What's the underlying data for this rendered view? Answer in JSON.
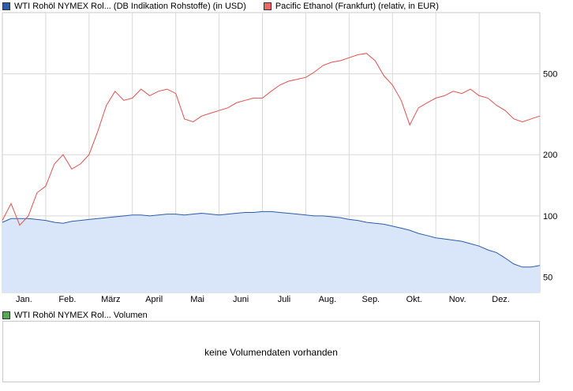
{
  "legend": {
    "series1_label": "WTI Rohöl NYMEX Rol... (DB Indikation Rohstoffe) (in USD)",
    "series2_label": "Pacific Ethanol (Frankfurt) (relativ, in EUR)",
    "volume_label": "WTI Rohöl NYMEX Rol... Volumen"
  },
  "volume_panel": {
    "message": "keine Volumendaten vorhanden"
  },
  "colors": {
    "series1": "#2a5caa",
    "series1_fill": "#d9e6fa",
    "series2": "#e05050",
    "volume": "#55aa55",
    "grid": "#d8d8d8"
  },
  "chart_data": {
    "type": "line",
    "y_scale": "log",
    "ylim": [
      42,
      1000
    ],
    "y_ticks": [
      50,
      100,
      200,
      500
    ],
    "x_tick_labels": [
      "Jan.",
      "Feb.",
      "März",
      "April",
      "Mai",
      "Juni",
      "Juli",
      "Aug.",
      "Sep.",
      "Okt.",
      "Nov.",
      "Dez."
    ],
    "grid": true,
    "legend_position": "top",
    "x": [
      0,
      0.2,
      0.4,
      0.6,
      0.8,
      1.0,
      1.2,
      1.4,
      1.6,
      1.8,
      2.0,
      2.2,
      2.4,
      2.6,
      2.8,
      3.0,
      3.2,
      3.4,
      3.6,
      3.8,
      4.0,
      4.2,
      4.4,
      4.6,
      4.8,
      5.0,
      5.2,
      5.4,
      5.6,
      5.8,
      6.0,
      6.2,
      6.4,
      6.6,
      6.8,
      7.0,
      7.2,
      7.4,
      7.6,
      7.8,
      8.0,
      8.2,
      8.4,
      8.6,
      8.8,
      9.0,
      9.2,
      9.4,
      9.6,
      9.8,
      10.0,
      10.2,
      10.4,
      10.6,
      10.8,
      11.0,
      11.2,
      11.4,
      11.6,
      11.8,
      12.0,
      12.2,
      12.4
    ],
    "series": [
      {
        "name": "WTI Rohöl NYMEX Rol... (DB Indikation Rohstoffe) (in USD)",
        "values": [
          93,
          97,
          97,
          97,
          96,
          95,
          93,
          92,
          94,
          95,
          96,
          97,
          98,
          99,
          100,
          101,
          101,
          100,
          101,
          102,
          102,
          101,
          102,
          103,
          102,
          101,
          102,
          103,
          104,
          104,
          105,
          105,
          104,
          103,
          102,
          101,
          100,
          100,
          99,
          98,
          96,
          95,
          93,
          92,
          91,
          89,
          87,
          85,
          82,
          80,
          78,
          77,
          76,
          75,
          73,
          71,
          68,
          66,
          62,
          58,
          56,
          56,
          57
        ]
      },
      {
        "name": "Pacific Ethanol (Frankfurt) (relativ, in EUR)",
        "values": [
          95,
          115,
          90,
          100,
          130,
          140,
          180,
          200,
          170,
          180,
          200,
          260,
          350,
          410,
          370,
          380,
          420,
          390,
          410,
          420,
          400,
          300,
          290,
          310,
          320,
          330,
          340,
          360,
          370,
          380,
          380,
          410,
          440,
          460,
          470,
          480,
          510,
          550,
          570,
          580,
          600,
          620,
          630,
          580,
          490,
          440,
          370,
          280,
          340,
          360,
          380,
          390,
          410,
          400,
          420,
          390,
          380,
          350,
          330,
          300,
          290,
          300,
          310
        ]
      }
    ]
  }
}
